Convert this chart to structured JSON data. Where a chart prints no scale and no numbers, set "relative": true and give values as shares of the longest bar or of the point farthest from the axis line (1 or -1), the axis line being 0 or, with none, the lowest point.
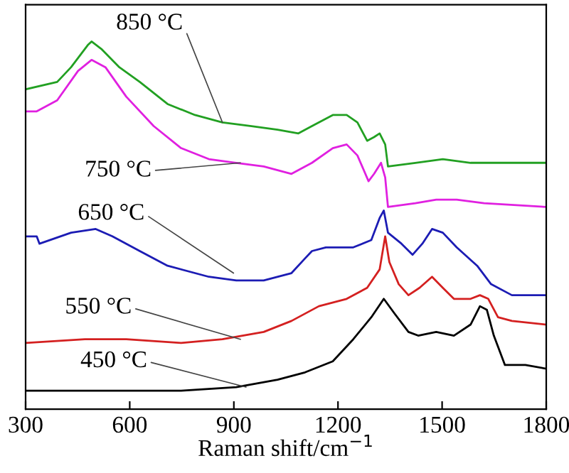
{
  "chart_data": {
    "type": "line",
    "relative": true,
    "xlabel": "Raman shift/cm$^{−1}$",
    "xlim": [
      300,
      1800
    ],
    "xticks": [
      300,
      600,
      900,
      1200,
      1500,
      1800
    ],
    "grid": false,
    "legend": false,
    "marker": "none",
    "line_style": "solid",
    "series": [
      {
        "color": "#000000",
        "x": [
          300,
          431,
          590,
          748,
          907,
          1026,
          1105,
          1185,
          1244,
          1296,
          1332,
          1363,
          1403,
          1431,
          1483,
          1534,
          1582,
          1609,
          1629,
          1649,
          1681,
          1740,
          1800
        ],
        "values": [
          0.05,
          0.05,
          0.05,
          0.05,
          0.06,
          0.08,
          0.1,
          0.13,
          0.19,
          0.25,
          0.3,
          0.26,
          0.21,
          0.2,
          0.21,
          0.2,
          0.23,
          0.28,
          0.27,
          0.2,
          0.12,
          0.12,
          0.11
        ]
      },
      {
        "color": "#d42020",
        "x": [
          300,
          471,
          590,
          748,
          867,
          986,
          1066,
          1145,
          1225,
          1284,
          1320,
          1336,
          1348,
          1375,
          1403,
          1435,
          1471,
          1502,
          1534,
          1582,
          1609,
          1633,
          1661,
          1701,
          1800
        ],
        "values": [
          0.18,
          0.19,
          0.19,
          0.18,
          0.19,
          0.21,
          0.24,
          0.28,
          0.3,
          0.33,
          0.38,
          0.47,
          0.4,
          0.34,
          0.31,
          0.33,
          0.36,
          0.33,
          0.3,
          0.3,
          0.31,
          0.3,
          0.25,
          0.24,
          0.23
        ]
      },
      {
        "color": "#1c1cb4",
        "x": [
          300,
          332,
          340,
          431,
          502,
          550,
          629,
          709,
          828,
          907,
          986,
          1066,
          1105,
          1125,
          1165,
          1244,
          1296,
          1320,
          1332,
          1344,
          1383,
          1415,
          1443,
          1471,
          1502,
          1542,
          1601,
          1641,
          1701,
          1800
        ],
        "values": [
          0.47,
          0.47,
          0.45,
          0.48,
          0.49,
          0.47,
          0.43,
          0.39,
          0.36,
          0.35,
          0.35,
          0.37,
          0.41,
          0.43,
          0.44,
          0.44,
          0.46,
          0.52,
          0.54,
          0.48,
          0.45,
          0.42,
          0.45,
          0.49,
          0.48,
          0.44,
          0.39,
          0.34,
          0.31,
          0.31
        ]
      },
      {
        "color": "#e020e0",
        "x": [
          300,
          332,
          391,
          451,
          490,
          530,
          590,
          669,
          748,
          828,
          907,
          986,
          1066,
          1125,
          1185,
          1225,
          1256,
          1288,
          1304,
          1324,
          1336,
          1344,
          1423,
          1483,
          1542,
          1621,
          1800
        ],
        "values": [
          0.81,
          0.81,
          0.84,
          0.92,
          0.95,
          0.93,
          0.85,
          0.77,
          0.71,
          0.68,
          0.67,
          0.66,
          0.64,
          0.67,
          0.71,
          0.72,
          0.69,
          0.62,
          0.64,
          0.67,
          0.63,
          0.55,
          0.56,
          0.57,
          0.57,
          0.56,
          0.55
        ]
      },
      {
        "color": "#22a022",
        "x": [
          300,
          391,
          431,
          479,
          490,
          518,
          570,
          629,
          709,
          788,
          867,
          947,
          1026,
          1086,
          1125,
          1185,
          1225,
          1256,
          1284,
          1304,
          1320,
          1336,
          1344,
          1423,
          1502,
          1582,
          1661,
          1800
        ],
        "values": [
          0.87,
          0.89,
          0.93,
          0.99,
          1.0,
          0.98,
          0.93,
          0.89,
          0.83,
          0.8,
          0.78,
          0.77,
          0.76,
          0.75,
          0.77,
          0.8,
          0.8,
          0.78,
          0.73,
          0.74,
          0.75,
          0.72,
          0.66,
          0.67,
          0.68,
          0.67,
          0.67,
          0.67
        ]
      }
    ],
    "annotations": [
      {
        "text": "450 °C",
        "x": 935,
        "y": 0.06
      },
      {
        "text": "550 °C",
        "x": 919,
        "y": 0.19
      },
      {
        "text": "650 °C",
        "x": 899,
        "y": 0.37
      },
      {
        "text": "750 °C",
        "x": 919,
        "y": 0.67
      },
      {
        "text": "850 °C",
        "x": 867,
        "y": 0.78
      }
    ]
  }
}
